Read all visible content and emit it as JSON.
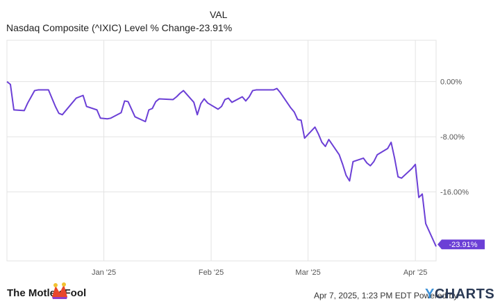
{
  "legend": {
    "column_header": "VAL",
    "series_label": "Nasdaq Composite (^IXIC) Level % Change",
    "series_value": "-23.91%"
  },
  "chart_data": {
    "type": "line",
    "title": "",
    "xlabel": "",
    "ylabel": "",
    "ylim": [
      -26,
      6
    ],
    "yticks": [
      {
        "value": 0,
        "label": "0.00%"
      },
      {
        "value": -8,
        "label": "-8.00%"
      },
      {
        "value": -16,
        "label": "-16.00%"
      }
    ],
    "xticks": [
      {
        "value": "2025-01-01",
        "label": "Jan '25"
      },
      {
        "value": "2025-02-01",
        "label": "Feb '25"
      },
      {
        "value": "2025-03-01",
        "label": "Mar '25"
      },
      {
        "value": "2025-04-01",
        "label": "Apr '25"
      }
    ],
    "xlim": [
      "2024-12-04",
      "2025-04-07"
    ],
    "grid": true,
    "line_color": "#6b3fd6",
    "end_label": "-23.91%",
    "series": [
      {
        "x": [
          "2024-12-04",
          "2024-12-05",
          "2024-12-06",
          "2024-12-09",
          "2024-12-10",
          "2024-12-11",
          "2024-12-12",
          "2024-12-13",
          "2024-12-16",
          "2024-12-17",
          "2024-12-18",
          "2024-12-19",
          "2024-12-20",
          "2024-12-23",
          "2024-12-24",
          "2024-12-26",
          "2024-12-27",
          "2024-12-30",
          "2024-12-31",
          "2025-01-02",
          "2025-01-03",
          "2025-01-06",
          "2025-01-07",
          "2025-01-08",
          "2025-01-10",
          "2025-01-13",
          "2025-01-14",
          "2025-01-15",
          "2025-01-16",
          "2025-01-17",
          "2025-01-21",
          "2025-01-22",
          "2025-01-23",
          "2025-01-24",
          "2025-01-27",
          "2025-01-28",
          "2025-01-29",
          "2025-01-30",
          "2025-01-31",
          "2025-02-03",
          "2025-02-04",
          "2025-02-05",
          "2025-02-06",
          "2025-02-07",
          "2025-02-10",
          "2025-02-11",
          "2025-02-12",
          "2025-02-13",
          "2025-02-14",
          "2025-02-18",
          "2025-02-19",
          "2025-02-20",
          "2025-02-21",
          "2025-02-24",
          "2025-02-25",
          "2025-02-26",
          "2025-02-27",
          "2025-02-28",
          "2025-03-03",
          "2025-03-04",
          "2025-03-05",
          "2025-03-06",
          "2025-03-07",
          "2025-03-10",
          "2025-03-11",
          "2025-03-12",
          "2025-03-13",
          "2025-03-14",
          "2025-03-17",
          "2025-03-18",
          "2025-03-19",
          "2025-03-20",
          "2025-03-21",
          "2025-03-24",
          "2025-03-25",
          "2025-03-26",
          "2025-03-27",
          "2025-03-28",
          "2025-03-31",
          "2025-04-01",
          "2025-04-02",
          "2025-04-03",
          "2025-04-04",
          "2025-04-07"
        ],
        "values": [
          0.0,
          -0.4,
          -4.1,
          -4.2,
          -3.1,
          -2.2,
          -1.3,
          -1.2,
          -1.2,
          -2.4,
          -3.6,
          -4.6,
          -4.8,
          -3.0,
          -2.4,
          -2.0,
          -3.6,
          -4.1,
          -5.3,
          -5.4,
          -5.3,
          -4.5,
          -2.8,
          -2.9,
          -5.1,
          -5.8,
          -4.1,
          -3.9,
          -2.9,
          -2.5,
          -2.6,
          -2.2,
          -1.7,
          -1.3,
          -3.0,
          -4.8,
          -3.2,
          -2.5,
          -3.1,
          -4.0,
          -3.6,
          -2.6,
          -2.4,
          -3.0,
          -2.2,
          -2.8,
          -2.2,
          -1.3,
          -1.2,
          -1.2,
          -1.2,
          -1.0,
          -1.6,
          -3.8,
          -4.4,
          -5.5,
          -5.6,
          -8.2,
          -6.6,
          -7.6,
          -8.8,
          -9.4,
          -8.4,
          -10.6,
          -12.0,
          -13.6,
          -14.4,
          -11.6,
          -11.1,
          -11.8,
          -12.2,
          -11.6,
          -10.6,
          -9.7,
          -8.8,
          -11.1,
          -13.8,
          -14.0,
          -12.6,
          -12.0,
          -16.8,
          -16.3,
          -20.6,
          -23.91
        ]
      }
    ]
  },
  "footer": {
    "brand": "The Motley Fool",
    "timestamp": "Apr 7, 2025, 1:23 PM EDT Powered by",
    "ycharts_logo": "YCHARTS"
  },
  "colors": {
    "line": "#6b3fd6",
    "grid": "#e3e3e3",
    "axis_text": "#555555",
    "end_label_bg": "#6b3fd6",
    "fool_brand": "#e8462b"
  }
}
